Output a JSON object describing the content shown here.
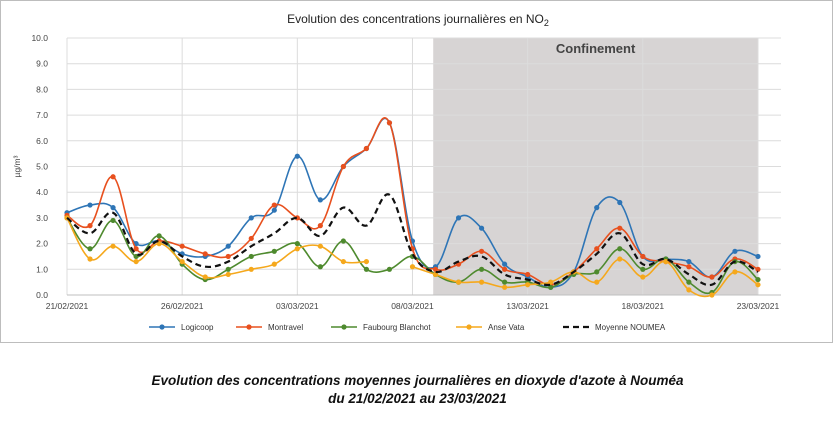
{
  "chart_data": {
    "type": "line",
    "title": "Evolution des concentrations journalières en NO",
    "title_subscript": "2",
    "ylabel": "µg/m³",
    "xlabel": "",
    "ylim": [
      0,
      10
    ],
    "yticks": [
      "0.0",
      "1.0",
      "2.0",
      "3.0",
      "4.0",
      "5.0",
      "6.0",
      "7.0",
      "8.0",
      "9.0",
      "10.0"
    ],
    "x_days": 31,
    "xticks": [
      {
        "label": "21/02/2021",
        "day": 0
      },
      {
        "label": "26/02/2021",
        "day": 5
      },
      {
        "label": "03/03/2021",
        "day": 10
      },
      {
        "label": "08/03/2021",
        "day": 15
      },
      {
        "label": "13/03/2021",
        "day": 20
      },
      {
        "label": "18/03/2021",
        "day": 25
      },
      {
        "label": "23/03/2021",
        "day": 30
      }
    ],
    "shaded_region": {
      "label": "Confinement",
      "start_day": 15.9,
      "end_day": 30,
      "color": "#d0cccc"
    },
    "series": [
      {
        "name": "Logicoop",
        "color": "#2e75b6",
        "style": "solid",
        "values": [
          3.2,
          3.5,
          3.4,
          2.0,
          2.1,
          1.6,
          1.5,
          1.9,
          3.0,
          3.3,
          5.4,
          3.7,
          5.0,
          5.7,
          6.7,
          2.1,
          1.1,
          3.0,
          2.6,
          1.2,
          0.7,
          0.3,
          0.9,
          3.4,
          3.6,
          1.5,
          1.4,
          1.3,
          0.7,
          1.7,
          1.5
        ]
      },
      {
        "name": "Montravel",
        "color": "#e8501e",
        "style": "solid",
        "values": [
          3.1,
          2.7,
          4.6,
          1.8,
          2.1,
          1.9,
          1.6,
          1.5,
          2.2,
          3.5,
          3.0,
          2.7,
          5.0,
          5.7,
          6.7,
          1.8,
          1.0,
          1.2,
          1.7,
          1.0,
          0.8,
          0.4,
          0.9,
          1.8,
          2.6,
          1.5,
          1.3,
          1.1,
          0.7,
          1.4,
          1.0
        ]
      },
      {
        "name": "Faubourg Blanchot",
        "color": "#4e8a2e",
        "style": "solid",
        "values": [
          3.0,
          1.8,
          2.9,
          1.5,
          2.3,
          1.2,
          0.6,
          1.0,
          1.5,
          1.7,
          2.0,
          1.1,
          2.1,
          1.0,
          1.0,
          1.5,
          0.8,
          0.5,
          1.0,
          0.5,
          0.5,
          0.3,
          0.8,
          0.9,
          1.8,
          1.0,
          1.4,
          0.5,
          0.1,
          1.3,
          0.6
        ]
      },
      {
        "name": "Anse Vata",
        "color": "#f5a81c",
        "style": "solid",
        "values": [
          3.0,
          1.4,
          1.9,
          1.3,
          2.0,
          1.3,
          0.7,
          0.8,
          1.0,
          1.2,
          1.8,
          1.9,
          1.3,
          1.3,
          null,
          1.1,
          0.8,
          0.5,
          0.5,
          0.3,
          0.4,
          0.5,
          0.9,
          0.5,
          1.4,
          0.7,
          1.3,
          0.2,
          0.0,
          0.9,
          0.4
        ]
      },
      {
        "name": "Moyenne NOUMEA",
        "color": "#111111",
        "style": "dashed",
        "values": [
          3.0,
          2.4,
          3.2,
          1.6,
          2.1,
          1.5,
          1.1,
          1.3,
          1.9,
          2.4,
          3.0,
          2.3,
          3.4,
          2.7,
          3.9,
          1.6,
          0.9,
          1.3,
          1.5,
          0.8,
          0.6,
          0.4,
          0.9,
          1.6,
          2.4,
          1.2,
          1.4,
          0.8,
          0.4,
          1.3,
          0.9
        ]
      }
    ],
    "legend_position": "bottom"
  },
  "caption": {
    "line1": "Evolution des concentrations moyennes journalières en dioxyde d'azote à Nouméa",
    "line2": "du 21/02/2021 au 23/03/2021"
  }
}
